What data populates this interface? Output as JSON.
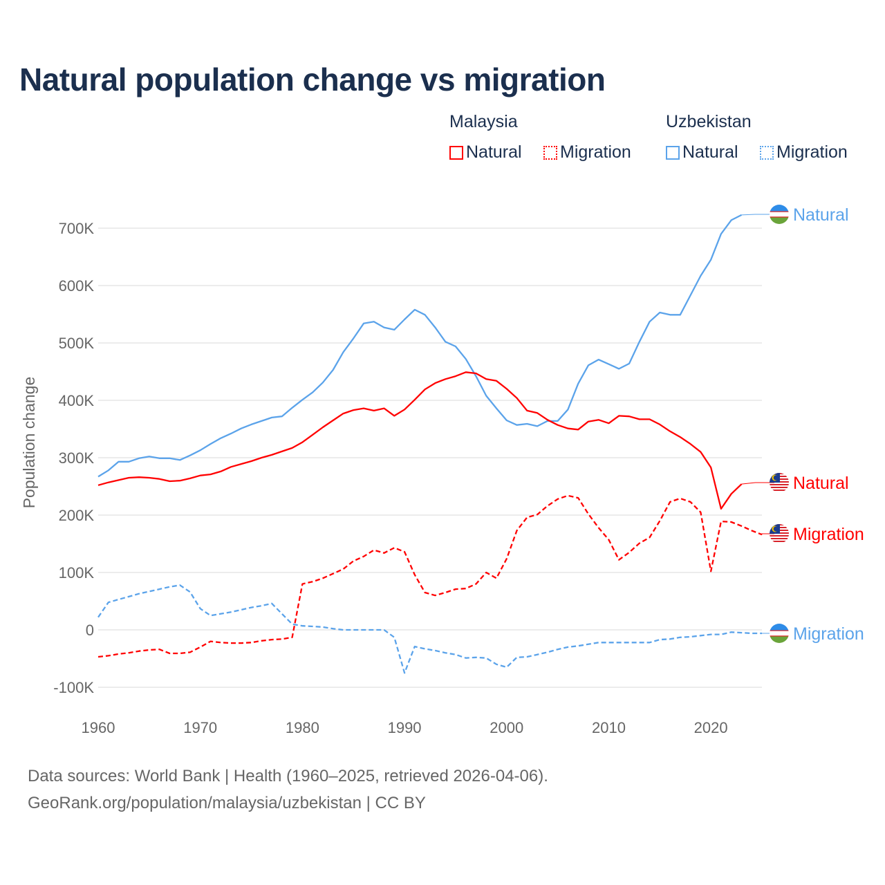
{
  "title": "Natural population change vs migration",
  "legend": {
    "groups": [
      {
        "name": "Malaysia",
        "items": [
          {
            "label": "Natural",
            "style": "solid"
          },
          {
            "label": "Migration",
            "style": "dotted"
          }
        ],
        "color": "#ff0000"
      },
      {
        "name": "Uzbekistan",
        "items": [
          {
            "label": "Natural",
            "style": "solid"
          },
          {
            "label": "Migration",
            "style": "dotted"
          }
        ],
        "color": "#5ba3ea"
      }
    ]
  },
  "footer": {
    "line1": "Data sources: World Bank | Health (1960–2025, retrieved 2026-04-06).",
    "line2": "GeoRank.org/population/malaysia/uzbekistan | CC BY"
  },
  "chart_data": {
    "type": "line",
    "title": "Natural population change vs migration",
    "xlabel": "",
    "ylabel": "Population change",
    "xlim": [
      1960,
      2025
    ],
    "ylim": [
      -110000,
      730000
    ],
    "x_ticks": [
      1960,
      1970,
      1980,
      1990,
      2000,
      2010,
      2020
    ],
    "y_ticks": [
      {
        "v": -100000,
        "label": "-100K"
      },
      {
        "v": 0,
        "label": "0"
      },
      {
        "v": 100000,
        "label": "100K"
      },
      {
        "v": 200000,
        "label": "200K"
      },
      {
        "v": 300000,
        "label": "300K"
      },
      {
        "v": 400000,
        "label": "400K"
      },
      {
        "v": 500000,
        "label": "500K"
      },
      {
        "v": 600000,
        "label": "600K"
      },
      {
        "v": 700000,
        "label": "700K"
      }
    ],
    "grid": true,
    "legend_position": "top-right",
    "series": [
      {
        "name": "Uzbekistan Natural",
        "end_label": "Natural",
        "country": "uzbekistan",
        "color": "#5ba3ea",
        "dash": false,
        "start": 1960,
        "values": [
          267,
          278,
          293,
          293,
          299,
          302,
          299,
          299,
          296,
          304,
          313,
          324,
          334,
          342,
          351,
          358,
          364,
          370,
          372,
          387,
          401,
          414,
          431,
          453,
          484,
          508,
          534,
          537,
          527,
          523,
          541,
          558,
          549,
          527,
          502,
          494,
          472,
          442,
          408,
          386,
          365,
          357,
          359,
          355,
          364,
          364,
          384,
          429,
          461,
          471,
          463,
          455,
          464,
          502,
          537,
          553,
          549,
          549,
          583,
          617,
          645,
          690,
          714,
          723
        ]
      },
      {
        "name": "Malaysia Natural",
        "end_label": "Natural",
        "country": "malaysia",
        "color": "#ff0000",
        "dash": false,
        "start": 1960,
        "values": [
          252,
          257,
          261,
          265,
          266,
          265,
          263,
          259,
          260,
          264,
          269,
          271,
          276,
          284,
          289,
          294,
          300,
          305,
          311,
          317,
          327,
          340,
          353,
          365,
          377,
          383,
          386,
          382,
          386,
          373,
          384,
          401,
          419,
          430,
          437,
          442,
          449,
          447,
          437,
          434,
          420,
          404,
          382,
          378,
          366,
          357,
          351,
          349,
          363,
          366,
          360,
          373,
          372,
          367,
          367,
          358,
          346,
          336,
          324,
          310,
          283,
          211,
          237,
          254
        ]
      },
      {
        "name": "Malaysia Migration",
        "end_label": "Migration",
        "country": "malaysia",
        "color": "#ff0000",
        "dash": true,
        "start": 1960,
        "values": [
          -47,
          -45,
          -42,
          -40,
          -37,
          -35,
          -34,
          -41,
          -41,
          -39,
          -30,
          -20,
          -22,
          -23,
          -23,
          -22,
          -19,
          -17,
          -16,
          -13,
          80,
          84,
          90,
          98,
          106,
          120,
          128,
          139,
          134,
          143,
          136,
          96,
          65,
          60,
          65,
          71,
          72,
          80,
          100,
          90,
          124,
          173,
          196,
          201,
          216,
          228,
          234,
          230,
          202,
          178,
          157,
          122,
          135,
          151,
          161,
          190,
          223,
          229,
          223,
          205,
          102,
          189,
          188,
          181,
          173,
          166
        ]
      },
      {
        "name": "Uzbekistan Migration",
        "end_label": "Migration",
        "country": "uzbekistan",
        "color": "#5ba3ea",
        "dash": true,
        "start": 1960,
        "values": [
          22,
          48,
          53,
          58,
          63,
          67,
          71,
          75,
          78,
          66,
          37,
          25,
          28,
          31,
          35,
          39,
          42,
          46,
          28,
          10,
          7,
          6,
          5,
          2,
          0,
          0,
          0,
          0,
          0,
          -13,
          -75,
          -29,
          -33,
          -36,
          -40,
          -43,
          -49,
          -48,
          -49,
          -60,
          -65,
          -48,
          -47,
          -43,
          -39,
          -34,
          -30,
          -28,
          -25,
          -22,
          -22,
          -22,
          -22,
          -22,
          -22,
          -17,
          -16,
          -13,
          -12,
          -10,
          -8,
          -8,
          -4,
          -5,
          -6,
          -6
        ]
      }
    ],
    "value_unit": "thousands"
  }
}
